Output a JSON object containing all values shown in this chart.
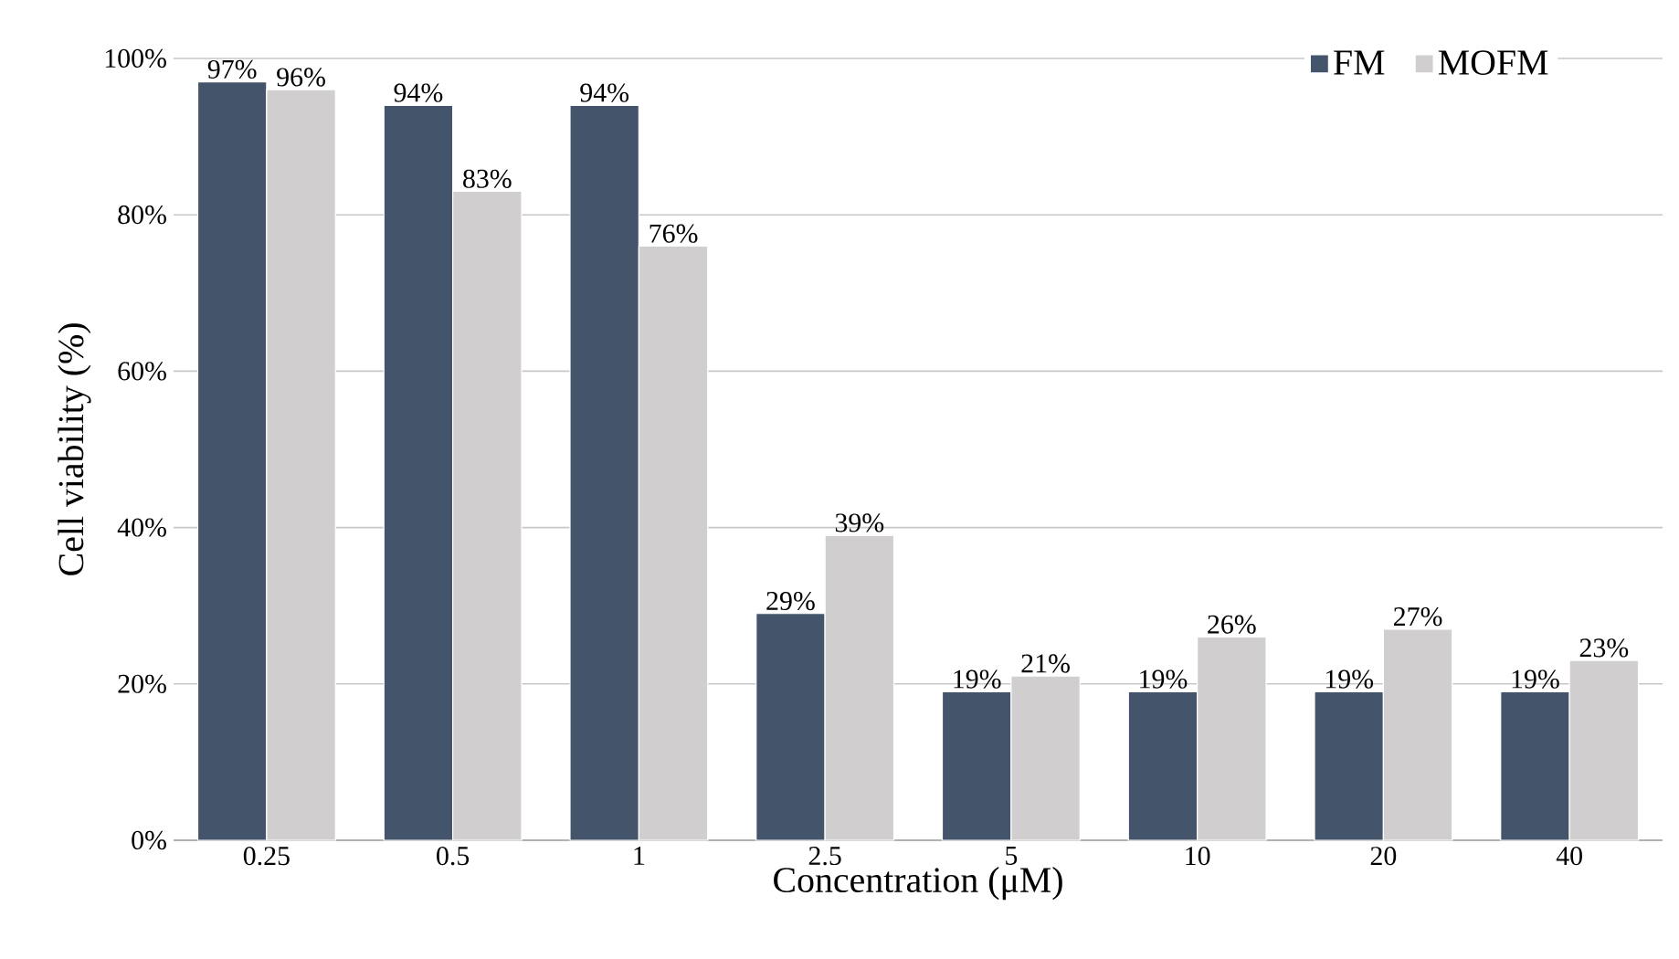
{
  "chart_data": {
    "type": "bar",
    "xlabel": "Concentration (μM)",
    "ylabel": "Cell viability (%)",
    "categories": [
      "0.25",
      "0.5",
      "1",
      "2.5",
      "5",
      "10",
      "20",
      "40"
    ],
    "series": [
      {
        "name": "FM",
        "color": "#44546a",
        "values": [
          97,
          94,
          94,
          29,
          19,
          19,
          19,
          19
        ],
        "value_labels": [
          "97%",
          "94%",
          "94%",
          "29%",
          "19%",
          "19%",
          "19%",
          "19%"
        ]
      },
      {
        "name": "MOFM",
        "color": "#d0cece",
        "values": [
          96,
          83,
          76,
          39,
          21,
          26,
          27,
          23
        ],
        "value_labels": [
          "96%",
          "83%",
          "76%",
          "39%",
          "21%",
          "26%",
          "27%",
          "23%"
        ]
      }
    ],
    "ylim": [
      0,
      100
    ],
    "yticks": [
      {
        "value": 0,
        "label": "0%"
      },
      {
        "value": 20,
        "label": "20%"
      },
      {
        "value": 40,
        "label": "40%"
      },
      {
        "value": 60,
        "label": "60%"
      },
      {
        "value": 80,
        "label": "80%"
      },
      {
        "value": 100,
        "label": "100%"
      }
    ],
    "grid": "y",
    "legend": "top right"
  }
}
